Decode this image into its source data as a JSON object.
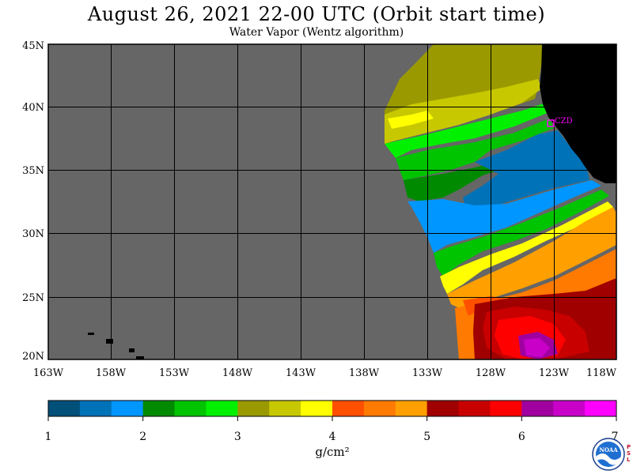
{
  "title": "August 26, 2021  22-00 UTC  (Orbit start time)",
  "subtitle": "Water Vapor (Wentz algorithm)",
  "map": {
    "lat_labels": [
      "45N",
      "40N",
      "35N",
      "30N",
      "25N",
      "20N"
    ],
    "lon_labels": [
      "163W",
      "158W",
      "153W",
      "148W",
      "143W",
      "138W",
      "133W",
      "128W",
      "123W",
      "118W"
    ],
    "lat_range": [
      20,
      45
    ],
    "lon_range": [
      -163,
      -118
    ],
    "grid": true,
    "no_data_color": "#666666",
    "land_color": "#000000",
    "station_label": "CZD",
    "station_color": "#ff00ff"
  },
  "colorbar": {
    "colors": [
      "#00507a",
      "#0072b8",
      "#0096ff",
      "#008a00",
      "#00c400",
      "#00f000",
      "#9a9a00",
      "#c8c800",
      "#ffff00",
      "#ff5000",
      "#ff7a00",
      "#ffa000",
      "#a00000",
      "#c80000",
      "#ff0000",
      "#a000a0",
      "#c800c8",
      "#ff00ff"
    ],
    "tick_labels": [
      "1",
      "2",
      "3",
      "4",
      "5",
      "6",
      "7"
    ],
    "units": "g/cm²"
  },
  "logo": {
    "text": "NOAA",
    "side_text": "PSL"
  }
}
